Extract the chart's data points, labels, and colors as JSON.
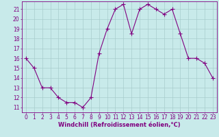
{
  "x": [
    0,
    1,
    2,
    3,
    4,
    5,
    6,
    7,
    8,
    9,
    10,
    11,
    12,
    13,
    14,
    15,
    16,
    17,
    18,
    19,
    20,
    21,
    22,
    23
  ],
  "y": [
    16,
    15,
    13,
    13,
    12,
    11.5,
    11.5,
    11,
    12,
    16.5,
    19,
    21,
    21.5,
    18.5,
    21,
    21.5,
    21,
    20.5,
    21,
    18.5,
    16,
    16,
    15.5,
    14
  ],
  "line_color": "#800080",
  "marker": "+",
  "marker_size": 4,
  "bg_color": "#c8eaea",
  "grid_color": "#a8cccc",
  "xlabel": "Windchill (Refroidissement éolien,°C)",
  "xlabel_fontsize": 6.0,
  "tick_fontsize": 5.5,
  "xlim": [
    -0.5,
    23.5
  ],
  "ylim": [
    10.5,
    21.8
  ],
  "yticks": [
    11,
    12,
    13,
    14,
    15,
    16,
    17,
    18,
    19,
    20,
    21
  ],
  "xticks": [
    0,
    1,
    2,
    3,
    4,
    5,
    6,
    7,
    8,
    9,
    10,
    11,
    12,
    13,
    14,
    15,
    16,
    17,
    18,
    19,
    20,
    21,
    22,
    23
  ]
}
